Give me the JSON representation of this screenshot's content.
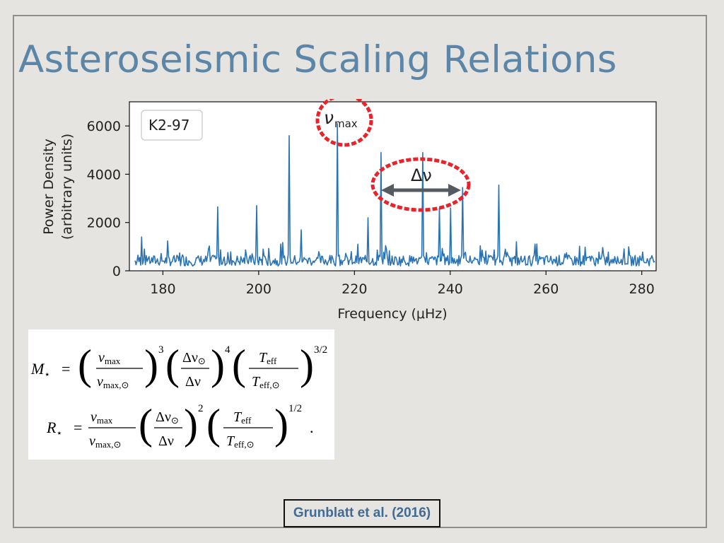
{
  "slide": {
    "title": "Asteroseismic Scaling Relations",
    "citation": "Grunblatt et al. (2016)"
  },
  "annotations": {
    "numax_label": "ν",
    "numax_sub": "max",
    "delta_nu_label": "Δν",
    "highlight_color": "#e8232a",
    "arrow_color": "#555b61"
  },
  "chart_data": {
    "type": "line",
    "legend_box": "K2-97",
    "xlabel": "Frequency (μHz)",
    "ylabel_line1": "Power Density",
    "ylabel_line2": "(arbitrary units)",
    "xlim": [
      173,
      283
    ],
    "ylim": [
      0,
      7000
    ],
    "xticks": [
      180,
      200,
      220,
      240,
      260,
      280
    ],
    "yticks": [
      0,
      2000,
      4000,
      6000
    ],
    "line_color": "#2a73b3",
    "numax_frequency": 216.5,
    "delta_nu_range": [
      225.5,
      242.5
    ],
    "peaks": [
      {
        "x": 175.5,
        "y": 1400
      },
      {
        "x": 191.5,
        "y": 2650
      },
      {
        "x": 199.5,
        "y": 2700
      },
      {
        "x": 206.3,
        "y": 5600
      },
      {
        "x": 208.8,
        "y": 1700
      },
      {
        "x": 216.5,
        "y": 6100
      },
      {
        "x": 222.8,
        "y": 2200
      },
      {
        "x": 225.6,
        "y": 4900
      },
      {
        "x": 234.3,
        "y": 4900
      },
      {
        "x": 237.8,
        "y": 2600
      },
      {
        "x": 240.0,
        "y": 2600
      },
      {
        "x": 242.5,
        "y": 3450
      },
      {
        "x": 250.2,
        "y": 3550
      }
    ]
  },
  "equations": {
    "mass": {
      "lhs": "M",
      "lhs_sub": "⋆",
      "f1_num": "ν",
      "f1_num_sub": "max",
      "f1_den": "ν",
      "f1_den_sub": "max,⊙",
      "f1_exp": "3",
      "f2_num": "Δν",
      "f2_num_sub": "⊙",
      "f2_den": "Δν",
      "f2_exp": "4",
      "f3_num": "T",
      "f3_num_sub": "eff",
      "f3_den": "T",
      "f3_den_sub": "eff,⊙",
      "f3_exp": "3/2"
    },
    "radius": {
      "lhs": "R",
      "lhs_sub": "⋆",
      "f1_num": "ν",
      "f1_num_sub": "max",
      "f1_den": "ν",
      "f1_den_sub": "max,⊙",
      "f2_num": "Δν",
      "f2_num_sub": "⊙",
      "f2_den": "Δν",
      "f2_exp": "2",
      "f3_num": "T",
      "f3_num_sub": "eff",
      "f3_den": "T",
      "f3_den_sub": "eff,⊙",
      "f3_exp": "1/2",
      "trailing": "."
    }
  }
}
